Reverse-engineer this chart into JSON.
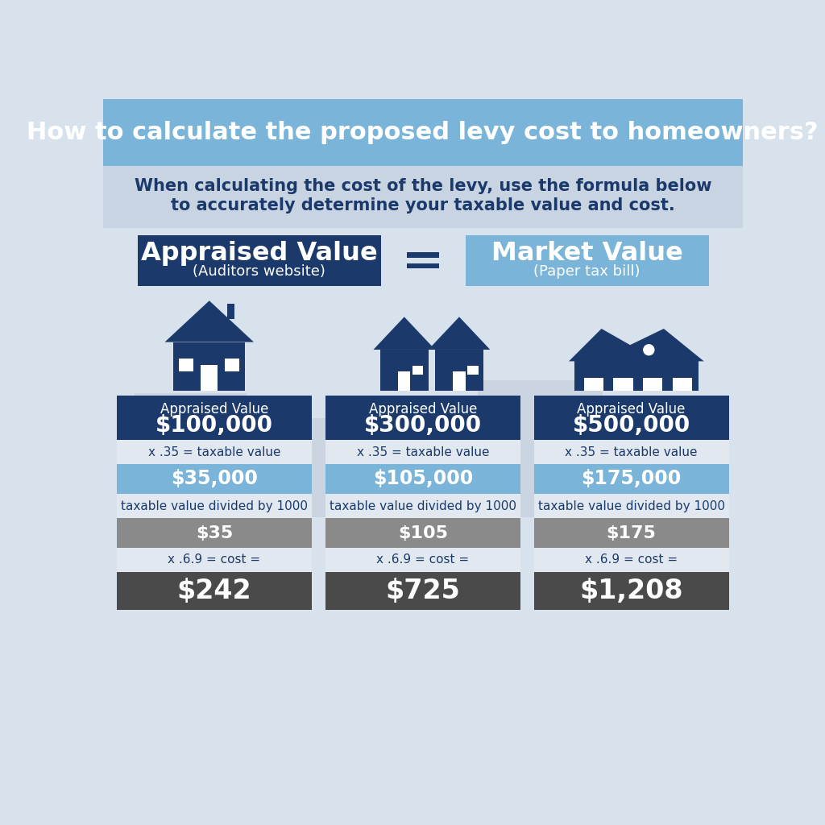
{
  "title": "How to calculate the proposed levy cost to homeowners?",
  "subtitle_line1": "When calculating the cost of the levy, use the formula below",
  "subtitle_line2": "to accurately determine your taxable value and cost.",
  "header_bg": "#7AB5D9",
  "body_bg": "#D8E2ED",
  "mid_bg": "#C8D4E2",
  "dark_blue": "#1B3A6B",
  "light_blue": "#7AB5D9",
  "gray_box": "#8A8A8A",
  "dark_gray_box": "#4A4A4A",
  "light_row_bg": "#E2E8F0",
  "white": "#FFFFFF",
  "appraised_label": "Appraised Value",
  "appraised_sub": "(Auditors website)",
  "market_label": "Market Value",
  "market_sub": "(Paper tax bill)",
  "equal_sign": "=",
  "cases": [
    {
      "appraised": "$100,000",
      "taxable": "$35,000",
      "divided": "$35",
      "cost": "$242"
    },
    {
      "appraised": "$300,000",
      "taxable": "$105,000",
      "divided": "$105",
      "cost": "$725"
    },
    {
      "appraised": "$500,000",
      "taxable": "$175,000",
      "divided": "$175",
      "cost": "$1,208"
    }
  ],
  "step1_label": "x .35 = taxable value",
  "step2_label": "taxable value divided by 1000",
  "step3_label": "x .6.9 = cost ="
}
